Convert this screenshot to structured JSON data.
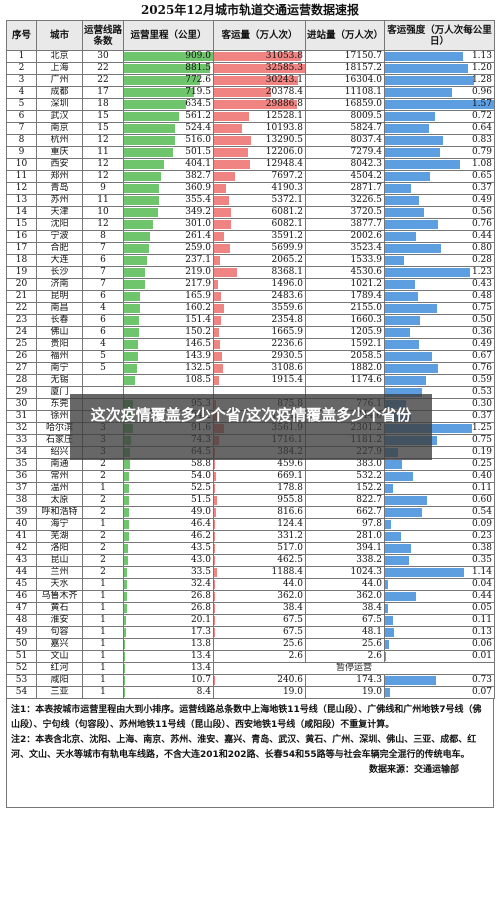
{
  "title": "2025年12月城市轨道交通运营数据速报",
  "headers": {
    "idx": "序号",
    "city": "城市",
    "lines": "运营线路条数",
    "mileage": "运营里程（公里）",
    "volume": "客运量（万人次）",
    "entry": "进站量（万人次）",
    "intensity": "客运强度（万人次每公里日）"
  },
  "colors": {
    "mileage": "#6ec56c",
    "volume": "#ef8482",
    "intensity": "#5c9ee0"
  },
  "scale": {
    "mileage_max": 909.0,
    "volume_max": 32585.3,
    "intensity_max": 1.57
  },
  "rows": [
    [
      "1",
      "北京",
      "30",
      "909.0",
      "31053.8",
      "17150.7",
      "1.13"
    ],
    [
      "2",
      "上海",
      "22",
      "881.5",
      "32585.3",
      "18157.2",
      "1.20"
    ],
    [
      "3",
      "广州",
      "22",
      "772.6",
      "30243.1",
      "16304.0",
      "1.28"
    ],
    [
      "4",
      "成都",
      "17",
      "719.5",
      "20378.4",
      "11108.1",
      "0.96"
    ],
    [
      "5",
      "深圳",
      "18",
      "634.5",
      "29886.8",
      "16859.0",
      "1.57"
    ],
    [
      "6",
      "武汉",
      "15",
      "561.2",
      "12528.1",
      "8009.5",
      "0.72"
    ],
    [
      "7",
      "南京",
      "15",
      "524.4",
      "10193.8",
      "5824.7",
      "0.64"
    ],
    [
      "8",
      "杭州",
      "12",
      "516.0",
      "13290.5",
      "8037.4",
      "0.83"
    ],
    [
      "9",
      "重庆",
      "11",
      "501.5",
      "12206.0",
      "7279.4",
      "0.79"
    ],
    [
      "10",
      "西安",
      "12",
      "404.1",
      "12948.4",
      "8042.3",
      "1.08"
    ],
    [
      "11",
      "郑州",
      "12",
      "382.7",
      "7697.2",
      "4504.2",
      "0.65"
    ],
    [
      "12",
      "青岛",
      "9",
      "360.9",
      "4190.3",
      "2871.7",
      "0.37"
    ],
    [
      "13",
      "苏州",
      "11",
      "355.4",
      "5372.1",
      "3226.5",
      "0.49"
    ],
    [
      "14",
      "天津",
      "10",
      "349.2",
      "6081.2",
      "3720.5",
      "0.56"
    ],
    [
      "15",
      "沈阳",
      "12",
      "301.0",
      "6082.1",
      "3877.7",
      "0.76"
    ],
    [
      "16",
      "宁波",
      "8",
      "261.4",
      "3591.2",
      "2002.6",
      "0.44"
    ],
    [
      "17",
      "合肥",
      "7",
      "259.0",
      "5699.9",
      "3523.4",
      "0.80"
    ],
    [
      "18",
      "大连",
      "6",
      "237.1",
      "2065.2",
      "1533.9",
      "0.28"
    ],
    [
      "19",
      "长沙",
      "7",
      "219.0",
      "8368.1",
      "4530.6",
      "1.23"
    ],
    [
      "20",
      "济南",
      "7",
      "217.9",
      "1496.0",
      "1021.2",
      "0.43"
    ],
    [
      "21",
      "昆明",
      "6",
      "165.9",
      "2483.6",
      "1789.4",
      "0.48"
    ],
    [
      "22",
      "南昌",
      "4",
      "160.2",
      "3559.6",
      "2155.0",
      "0.75"
    ],
    [
      "23",
      "长春",
      "6",
      "151.4",
      "2354.8",
      "1660.3",
      "0.50"
    ],
    [
      "24",
      "佛山",
      "6",
      "150.2",
      "1665.9",
      "1205.9",
      "0.36"
    ],
    [
      "25",
      "贵阳",
      "4",
      "146.5",
      "2236.6",
      "1592.1",
      "0.49"
    ],
    [
      "26",
      "福州",
      "5",
      "143.9",
      "2930.5",
      "2058.5",
      "0.67"
    ],
    [
      "27",
      "南宁",
      "5",
      "132.5",
      "3108.6",
      "1882.0",
      "0.76"
    ],
    [
      "28",
      "无锡",
      "",
      "108.5",
      "1915.4",
      "1174.6",
      "0.59"
    ],
    [
      "29",
      "厦门",
      "",
      "",
      "",
      "",
      "0.53"
    ],
    [
      "30",
      "东莞",
      "",
      "95.3",
      "875.8",
      "776.1",
      "0.30"
    ],
    [
      "31",
      "徐州",
      "",
      "94.2",
      "1134.3",
      "744.6",
      "0.37"
    ],
    [
      "32",
      "哈尔滨",
      "3",
      "91.6",
      "3561.9",
      "2301.2",
      "1.25"
    ],
    [
      "33",
      "石家庄",
      "3",
      "74.3",
      "1716.1",
      "1181.2",
      "0.75"
    ],
    [
      "34",
      "绍兴",
      "3",
      "64.5",
      "384.2",
      "227.9",
      "0.19"
    ],
    [
      "35",
      "南通",
      "2",
      "58.8",
      "459.6",
      "383.0",
      "0.25"
    ],
    [
      "36",
      "常州",
      "2",
      "54.0",
      "669.1",
      "532.2",
      "0.40"
    ],
    [
      "37",
      "温州",
      "1",
      "52.5",
      "178.8",
      "152.2",
      "0.11"
    ],
    [
      "38",
      "太原",
      "2",
      "51.5",
      "955.8",
      "822.7",
      "0.60"
    ],
    [
      "39",
      "呼和浩特",
      "2",
      "49.0",
      "816.6",
      "662.7",
      "0.54"
    ],
    [
      "40",
      "海宁",
      "1",
      "46.4",
      "124.4",
      "97.8",
      "0.09"
    ],
    [
      "41",
      "芜湖",
      "2",
      "46.2",
      "331.2",
      "281.0",
      "0.23"
    ],
    [
      "42",
      "洛阳",
      "2",
      "43.5",
      "517.0",
      "394.1",
      "0.38"
    ],
    [
      "43",
      "昆山",
      "2",
      "43.0",
      "462.5",
      "338.2",
      "0.35"
    ],
    [
      "44",
      "兰州",
      "2",
      "33.5",
      "1188.4",
      "1024.3",
      "1.14"
    ],
    [
      "45",
      "天水",
      "1",
      "32.4",
      "44.0",
      "44.0",
      "0.04"
    ],
    [
      "46",
      "乌鲁木齐",
      "1",
      "26.8",
      "362.0",
      "362.0",
      "0.44"
    ],
    [
      "47",
      "黄石",
      "1",
      "26.8",
      "38.4",
      "38.4",
      "0.05"
    ],
    [
      "48",
      "淮安",
      "1",
      "20.1",
      "67.5",
      "67.5",
      "0.11"
    ],
    [
      "49",
      "句容",
      "1",
      "17.3",
      "67.5",
      "48.1",
      "0.13"
    ],
    [
      "50",
      "嘉兴",
      "1",
      "13.8",
      "25.6",
      "25.6",
      "0.06"
    ],
    [
      "51",
      "文山",
      "1",
      "13.4",
      "2.6",
      "2.6",
      "0.01"
    ],
    [
      "52",
      "红河",
      "1",
      "13.4",
      "",
      "",
      "0"
    ],
    [
      "53",
      "咸阳",
      "1",
      "10.7",
      "240.6",
      "174.3",
      "0.73"
    ],
    [
      "54",
      "三亚",
      "1",
      "8.4",
      "19.0",
      "19.0",
      "0.07"
    ]
  ],
  "suspended_note": "暂停运营",
  "notes": {
    "note1": "注1：本表按城市运营里程由大到小排序。运营线路总条数中上海地铁11号线（昆山段）、广佛线和广州地铁7号线（佛山段）、宁句线（句容段）、苏州地铁11号线（昆山段）、西安地铁1号线（咸阳段）不重复计算。",
    "note2": "注2：本表含北京、沈阳、上海、南京、苏州、淮安、嘉兴、青岛、武汉、黄石、广州、深圳、佛山、三亚、成都、红河、文山、天水等城市有轨电车线路，不含大连201和202路、长春54和55路等与社会车辆完全混行的传统电车。",
    "source": "数据来源：交通运输部"
  },
  "overlay_text": "这次疫情覆盖多少个省/这次疫情覆盖多少个省份"
}
